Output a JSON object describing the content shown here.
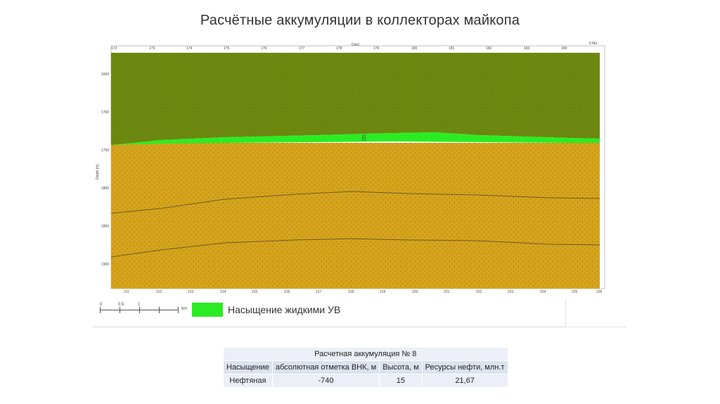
{
  "slide": {
    "title": "Расчётные аккумуляции в коллекторах майкопа"
  },
  "section": {
    "top_ticks": [
      "172",
      "173",
      "174",
      "175",
      "176",
      "177",
      "178",
      "179",
      "180",
      "181",
      "182",
      "183",
      "184"
    ],
    "top_axis_label": "Dist1",
    "top_right_label": "0 Ma",
    "bottom_ticks": [
      "211",
      "212",
      "213",
      "214",
      "215",
      "216",
      "217",
      "218",
      "219",
      "220",
      "221",
      "222",
      "223",
      "224",
      "225",
      "226"
    ],
    "depth_ticks": [
      "1650",
      "1700",
      "1750",
      "1800",
      "1850",
      "1900"
    ],
    "depth_axis_label": "Depth [m]",
    "accumulation_label": "8",
    "colors": {
      "seal": "#6e8a10",
      "reservoir": "#d6a41c",
      "oil": "#2bec24",
      "horizon_line": "#6f5a2a"
    }
  },
  "legend": {
    "scale_labels": [
      "0",
      "0.5",
      "1"
    ],
    "scale_unit": "km",
    "swatch_color": "#2bec24",
    "text": "Насыщение жидкими УВ"
  },
  "table": {
    "title": "Расчетная аккумуляция № 8",
    "headers": [
      "Насыщение",
      "абсолютная отметка ВНК, м",
      "Высота, м",
      "Ресурсы нефти, млн.т"
    ],
    "rows": [
      [
        "Нефтяная",
        "-740",
        "15",
        "21,67"
      ]
    ]
  }
}
